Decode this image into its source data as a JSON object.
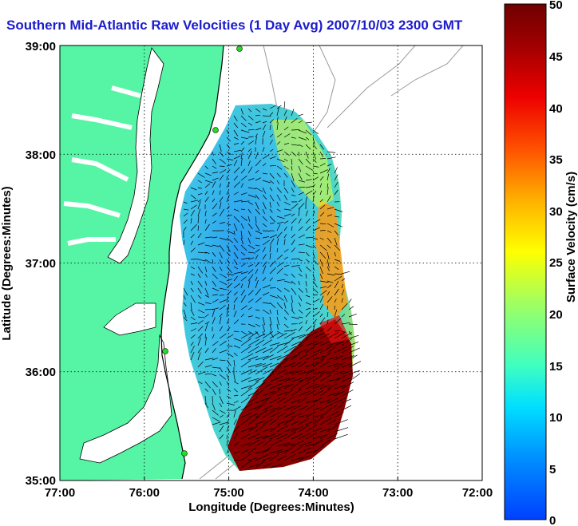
{
  "title": "Southern Mid-Atlantic Raw Velocities (1 Day Avg) 2007/10/03 2300 GMT",
  "map": {
    "x_axis_label": "Longitude (Degrees:Minutes)",
    "y_axis_label": "Latitude (Degrees:Minutes)",
    "x_ticks": [
      "77:00",
      "76:00",
      "75:00",
      "74:00",
      "73:00",
      "72:00"
    ],
    "y_ticks": [
      "39:00",
      "38:00",
      "37:00",
      "36:00",
      "35:00"
    ],
    "lon_range": [
      -77,
      -72
    ],
    "lat_range": [
      35,
      39
    ],
    "grid": "dotted",
    "colors": {
      "land": "#55f5a5",
      "water": "#ffffff",
      "coastline": "#000000",
      "bathymetry": "#9a9a9a",
      "station_marker": "#22dd22"
    }
  },
  "colorbar": {
    "label": "Surface Velocity (cm/s)",
    "ticks": [
      "0",
      "5",
      "10",
      "15",
      "20",
      "25",
      "30",
      "35",
      "40",
      "45",
      "50"
    ],
    "range": [
      0,
      50
    ],
    "colormap": "jet"
  }
}
